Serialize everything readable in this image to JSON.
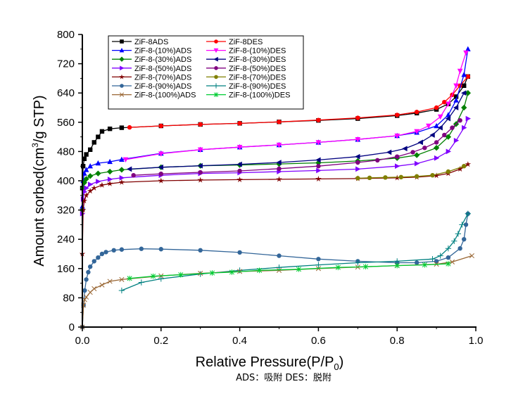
{
  "chart_data": {
    "type": "line",
    "title": "",
    "xlabel": "Relative Pressure(P/P0)",
    "xlabel_main": "Relative Pressure(P/P",
    "xlabel_sub": "0",
    "xlabel_close": ")",
    "ylabel": "Amount sorbed(cm3/g STP)",
    "ylabel_main": "Amount sorbed(cm",
    "ylabel_sup": "3",
    "ylabel_rest": "/g STP)",
    "xlim": [
      0,
      1.0
    ],
    "ylim": [
      0,
      800
    ],
    "xticks": [
      "0.0",
      "0.2",
      "0.4",
      "0.6",
      "0.8",
      "1.0"
    ],
    "xtick_values": [
      0,
      0.2,
      0.4,
      0.6,
      0.8,
      1.0
    ],
    "yticks": [
      "0",
      "80",
      "160",
      "240",
      "320",
      "400",
      "480",
      "560",
      "640",
      "720",
      "800"
    ],
    "ytick_values": [
      0,
      80,
      160,
      240,
      320,
      400,
      480,
      560,
      640,
      720,
      800
    ],
    "grid": false,
    "legend_position": "top-left",
    "note": "ADS：吸附 DES：脱附",
    "series": [
      {
        "name": "ZiF-8ADS",
        "color": "#000000",
        "marker": "square",
        "x": [
          0.0,
          0.002,
          0.005,
          0.01,
          0.02,
          0.03,
          0.04,
          0.05,
          0.07,
          0.1,
          0.2,
          0.3,
          0.4,
          0.5,
          0.6,
          0.7,
          0.8,
          0.85,
          0.9,
          0.93,
          0.95,
          0.97,
          0.98
        ],
        "y": [
          380,
          440,
          460,
          472,
          485,
          505,
          520,
          535,
          542,
          545,
          550,
          554,
          557,
          561,
          565,
          570,
          578,
          585,
          595,
          610,
          630,
          660,
          685
        ]
      },
      {
        "name": "ZiF-8DES",
        "color": "#ff0000",
        "marker": "circle",
        "x": [
          0.98,
          0.96,
          0.94,
          0.92,
          0.9,
          0.85,
          0.8,
          0.7,
          0.6,
          0.5,
          0.4,
          0.3,
          0.2,
          0.12
        ],
        "y": [
          685,
          660,
          635,
          615,
          600,
          588,
          580,
          572,
          566,
          561,
          557,
          554,
          550,
          546
        ]
      },
      {
        "name": "ZiF-8-(10%)ADS",
        "color": "#0000ff",
        "marker": "triangle-up",
        "x": [
          0.0,
          0.002,
          0.005,
          0.01,
          0.02,
          0.04,
          0.07,
          0.1,
          0.2,
          0.3,
          0.4,
          0.5,
          0.6,
          0.7,
          0.8,
          0.85,
          0.9,
          0.93,
          0.95,
          0.97,
          0.98
        ],
        "y": [
          330,
          400,
          420,
          430,
          440,
          448,
          452,
          458,
          475,
          485,
          492,
          498,
          505,
          513,
          523,
          532,
          550,
          580,
          620,
          690,
          760
        ]
      },
      {
        "name": "ZiF-8-(10%)DES",
        "color": "#ff00ff",
        "marker": "triangle-down",
        "x": [
          0.975,
          0.96,
          0.95,
          0.93,
          0.91,
          0.88,
          0.85,
          0.8,
          0.7,
          0.6,
          0.5,
          0.4,
          0.3,
          0.2,
          0.11
        ],
        "y": [
          750,
          700,
          660,
          610,
          575,
          550,
          535,
          523,
          513,
          505,
          498,
          492,
          485,
          474,
          458
        ]
      },
      {
        "name": "ZiF-8-(30%)ADS",
        "color": "#008000",
        "marker": "diamond",
        "x": [
          0.0,
          0.002,
          0.005,
          0.01,
          0.02,
          0.04,
          0.07,
          0.1,
          0.2,
          0.3,
          0.4,
          0.5,
          0.6,
          0.7,
          0.8,
          0.85,
          0.9,
          0.93,
          0.95,
          0.97,
          0.98
        ],
        "y": [
          320,
          380,
          395,
          405,
          413,
          420,
          425,
          430,
          437,
          441,
          443,
          446,
          449,
          454,
          462,
          470,
          490,
          520,
          555,
          600,
          640
        ]
      },
      {
        "name": "ZiF-8-(30%)DES",
        "color": "#000080",
        "marker": "triangle-left",
        "x": [
          0.97,
          0.95,
          0.93,
          0.91,
          0.89,
          0.86,
          0.82,
          0.78,
          0.7,
          0.6,
          0.5,
          0.4,
          0.3,
          0.2,
          0.12
        ],
        "y": [
          640,
          600,
          570,
          545,
          525,
          505,
          488,
          478,
          466,
          457,
          450,
          445,
          441,
          437,
          432
        ]
      },
      {
        "name": "ZiF-8-(50%)ADS",
        "color": "#8000ff",
        "marker": "triangle-right",
        "x": [
          0.0,
          0.002,
          0.005,
          0.01,
          0.02,
          0.04,
          0.07,
          0.1,
          0.2,
          0.3,
          0.4,
          0.5,
          0.6,
          0.7,
          0.8,
          0.85,
          0.9,
          0.93,
          0.95,
          0.97,
          0.98
        ],
        "y": [
          310,
          350,
          370,
          380,
          390,
          398,
          404,
          408,
          415,
          420,
          422,
          425,
          428,
          432,
          440,
          447,
          462,
          480,
          510,
          545,
          570
        ]
      },
      {
        "name": "ZiF-8-(50%)DES",
        "color": "#800080",
        "marker": "circle",
        "x": [
          0.96,
          0.94,
          0.92,
          0.9,
          0.87,
          0.84,
          0.8,
          0.75,
          0.7,
          0.6,
          0.5,
          0.4,
          0.3,
          0.2,
          0.13
        ],
        "y": [
          565,
          545,
          525,
          505,
          490,
          478,
          466,
          456,
          450,
          440,
          433,
          427,
          423,
          419,
          415
        ]
      },
      {
        "name": "ZiF-8-(70%)ADS",
        "color": "#800000",
        "marker": "star",
        "x": [
          0.0,
          0.002,
          0.005,
          0.01,
          0.02,
          0.03,
          0.05,
          0.07,
          0.1,
          0.2,
          0.3,
          0.4,
          0.5,
          0.6,
          0.7,
          0.8,
          0.85,
          0.9,
          0.93,
          0.96,
          0.98
        ],
        "y": [
          200,
          320,
          345,
          360,
          372,
          380,
          388,
          392,
          396,
          400,
          402,
          403,
          404,
          405,
          406,
          408,
          410,
          414,
          420,
          432,
          445
        ]
      },
      {
        "name": "ZiF-8-(70%)DES",
        "color": "#808000",
        "marker": "circle",
        "x": [
          0.97,
          0.93,
          0.89,
          0.85,
          0.81,
          0.77,
          0.73,
          0.7
        ],
        "y": [
          440,
          425,
          415,
          412,
          410,
          409,
          408,
          407
        ]
      },
      {
        "name": "ZiF-8-(90%)ADS",
        "color": "#336699",
        "marker": "circle",
        "x": [
          0.0,
          0.003,
          0.006,
          0.01,
          0.015,
          0.02,
          0.03,
          0.04,
          0.05,
          0.06,
          0.08,
          0.1,
          0.15,
          0.2,
          0.3,
          0.4,
          0.5,
          0.6,
          0.7,
          0.8,
          0.85,
          0.9,
          0.93,
          0.96,
          0.97,
          0.975,
          0.98
        ],
        "y": [
          0,
          60,
          100,
          130,
          150,
          165,
          180,
          190,
          200,
          205,
          210,
          212,
          214,
          213,
          210,
          204,
          195,
          186,
          180,
          176,
          176,
          180,
          190,
          215,
          240,
          280,
          310
        ]
      },
      {
        "name": "ZiF-8-(90%)DES",
        "color": "#008080",
        "marker": "plus",
        "x": [
          0.98,
          0.965,
          0.955,
          0.945,
          0.93,
          0.91,
          0.89,
          0.8,
          0.7,
          0.6,
          0.5,
          0.4,
          0.3,
          0.2,
          0.15,
          0.1
        ],
        "y": [
          310,
          280,
          255,
          235,
          215,
          195,
          186,
          180,
          176,
          170,
          163,
          155,
          145,
          132,
          122,
          100
        ]
      },
      {
        "name": "ZiF-8-(100%)ADS",
        "color": "#996633",
        "marker": "x",
        "x": [
          0.0,
          0.003,
          0.006,
          0.01,
          0.02,
          0.03,
          0.05,
          0.07,
          0.1,
          0.2,
          0.3,
          0.4,
          0.5,
          0.6,
          0.7,
          0.8,
          0.9,
          0.94,
          0.99
        ],
        "y": [
          0,
          60,
          75,
          82,
          95,
          105,
          115,
          125,
          130,
          140,
          147,
          152,
          155,
          160,
          164,
          168,
          172,
          178,
          195
        ]
      },
      {
        "name": "ZiF-8-(100%)DES",
        "color": "#00cc33",
        "marker": "asterisk",
        "x": [
          0.93,
          0.87,
          0.8,
          0.72,
          0.65,
          0.55,
          0.45,
          0.38,
          0.33,
          0.25,
          0.18,
          0.12
        ],
        "y": [
          173,
          170,
          168,
          165,
          163,
          158,
          155,
          150,
          148,
          143,
          139,
          133
        ]
      }
    ]
  }
}
